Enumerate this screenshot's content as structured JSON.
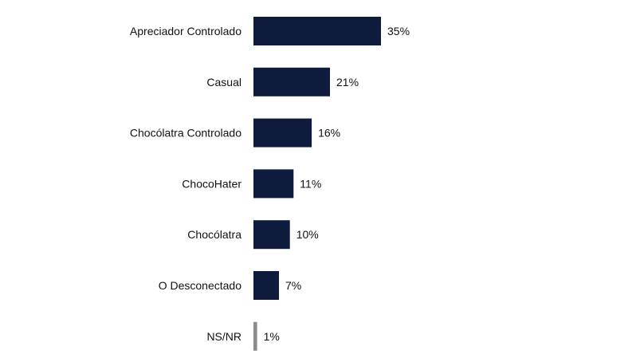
{
  "chart_data": {
    "type": "bar",
    "orientation": "horizontal",
    "categories": [
      "Apreciador Controlado",
      "Casual",
      "Chocólatra Controlado",
      "ChocoHater",
      "Chocólatra",
      "O Desconectado",
      "NS/NR"
    ],
    "values": [
      35,
      21,
      16,
      11,
      10,
      7,
      1
    ],
    "value_labels": [
      "35%",
      "21%",
      "16%",
      "11%",
      "10%",
      "7%",
      "1%"
    ],
    "bar_colors": [
      "#0f1b3d",
      "#0f1b3d",
      "#0f1b3d",
      "#0f1b3d",
      "#0f1b3d",
      "#0f1b3d",
      "#8c8c8c"
    ],
    "unit": "%",
    "xlim": [
      0,
      35
    ],
    "grid": false,
    "legend": "none"
  }
}
